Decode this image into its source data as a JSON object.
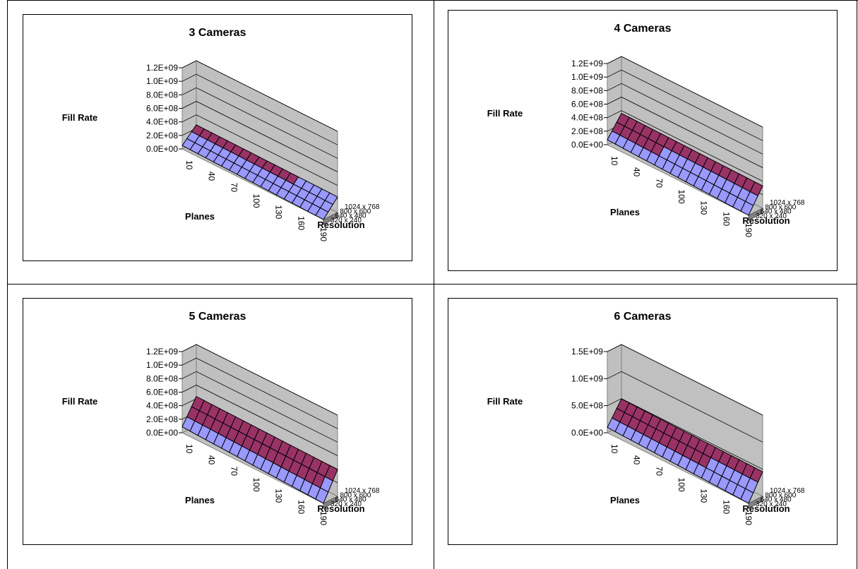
{
  "chart_data": [
    {
      "type": "surface",
      "title": "3 Cameras",
      "zlabel": "Fill Rate",
      "xlabel": "Planes",
      "ylabel": "Resolution",
      "z_ticks": [
        "0.0E+00",
        "2.0E+08",
        "4.0E+08",
        "6.0E+08",
        "8.0E+08",
        "1.0E+09",
        "1.2E+09"
      ],
      "zlim": [
        0,
        1200000000.0
      ],
      "x_ticks": [
        "10",
        "40",
        "70",
        "100",
        "130",
        "160",
        "190"
      ],
      "y_ticks": [
        "320 x 240",
        "640 x 480",
        "800 x 600",
        "1024 x 768"
      ],
      "band_colors": [
        "#9999ff",
        "#993366",
        "#ffffcc",
        "#ccffff",
        "#660066"
      ]
    },
    {
      "type": "surface",
      "title": "4 Cameras",
      "zlabel": "Fill Rate",
      "xlabel": "Planes",
      "ylabel": "Resolution",
      "z_ticks": [
        "0.0E+00",
        "2.0E+08",
        "4.0E+08",
        "6.0E+08",
        "8.0E+08",
        "1.0E+09",
        "1.2E+09"
      ],
      "zlim": [
        0,
        1200000000.0
      ],
      "x_ticks": [
        "10",
        "40",
        "70",
        "100",
        "130",
        "160",
        "190"
      ],
      "y_ticks": [
        "320 x 240",
        "640 x 480",
        "800 x 600",
        "1024 x 768"
      ],
      "band_colors": [
        "#9999ff",
        "#993366",
        "#ffffcc",
        "#ccffff",
        "#660066"
      ]
    },
    {
      "type": "surface",
      "title": "5 Cameras",
      "zlabel": "Fill Rate",
      "xlabel": "Planes",
      "ylabel": "Resolution",
      "z_ticks": [
        "0.0E+00",
        "2.0E+08",
        "4.0E+08",
        "6.0E+08",
        "8.0E+08",
        "1.0E+09",
        "1.2E+09"
      ],
      "zlim": [
        0,
        1200000000.0
      ],
      "x_ticks": [
        "10",
        "40",
        "70",
        "100",
        "130",
        "160",
        "190"
      ],
      "y_ticks": [
        "320 x 240",
        "640 x 480",
        "800 x 600",
        "1024 x 768"
      ],
      "band_colors": [
        "#9999ff",
        "#993366",
        "#ffffcc",
        "#ccffff",
        "#660066"
      ]
    },
    {
      "type": "surface",
      "title": "6 Cameras",
      "zlabel": "Fill Rate",
      "xlabel": "Planes",
      "ylabel": "Resolution",
      "z_ticks": [
        "0.0E+00",
        "5.0E+08",
        "1.0E+09",
        "1.5E+09"
      ],
      "zlim": [
        0,
        1500000000.0
      ],
      "x_ticks": [
        "10",
        "40",
        "70",
        "100",
        "130",
        "160",
        "190"
      ],
      "y_ticks": [
        "320 x 240",
        "640 x 480",
        "800 x 600",
        "1024 x 768"
      ],
      "band_colors": [
        "#9999ff",
        "#993366",
        "#ffffcc",
        "#ccffff",
        "#660066"
      ]
    }
  ]
}
